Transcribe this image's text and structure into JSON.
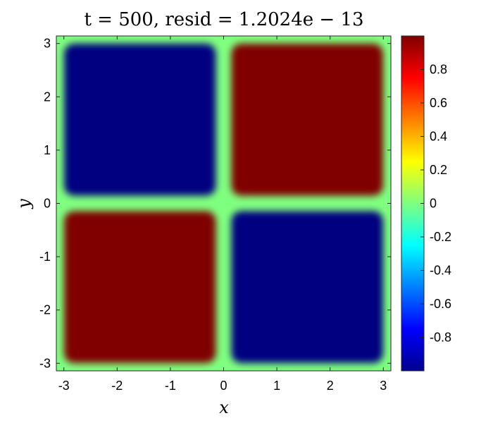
{
  "chart_data": {
    "type": "heatmap",
    "title": "t = 500,  resid = 1.2024e − 13",
    "xlabel": "x",
    "ylabel": "y",
    "xlim": [
      -3.14159,
      3.14159
    ],
    "ylim": [
      -3.14159,
      3.14159
    ],
    "x_ticks": [
      -3,
      -2,
      -1,
      0,
      1,
      2,
      3
    ],
    "y_ticks": [
      -3,
      -2,
      -1,
      0,
      1,
      2,
      3
    ],
    "x_tick_labels": [
      "-3",
      "-2",
      "-1",
      "0",
      "1",
      "2",
      "3"
    ],
    "y_tick_labels": [
      "-3",
      "-2",
      "-1",
      "0",
      "1",
      "2",
      "3"
    ],
    "colormap": "jet",
    "clim": [
      -1,
      1
    ],
    "colorbar_ticks": [
      0.8,
      0.6,
      0.4,
      0.2,
      0,
      -0.2,
      -0.4,
      -0.6,
      -0.8
    ],
    "colorbar_tick_labels": [
      "0.8",
      "0.6",
      "0.4",
      "0.2",
      "0",
      "-0.2",
      "-0.4",
      "-0.6",
      "-0.8"
    ],
    "regions": [
      {
        "quadrant": "top-left",
        "x": [
          -3.14159,
          0
        ],
        "y": [
          0,
          3.14159
        ],
        "value": -1
      },
      {
        "quadrant": "top-right",
        "x": [
          0,
          3.14159
        ],
        "y": [
          0,
          3.14159
        ],
        "value": 1
      },
      {
        "quadrant": "bottom-left",
        "x": [
          -3.14159,
          0
        ],
        "y": [
          -3.14159,
          0
        ],
        "value": 1
      },
      {
        "quadrant": "bottom-right",
        "x": [
          0,
          3.14159
        ],
        "y": [
          -3.14159,
          0
        ],
        "value": -1
      }
    ],
    "boundary_value": 0,
    "grid": false,
    "legend": "none"
  }
}
